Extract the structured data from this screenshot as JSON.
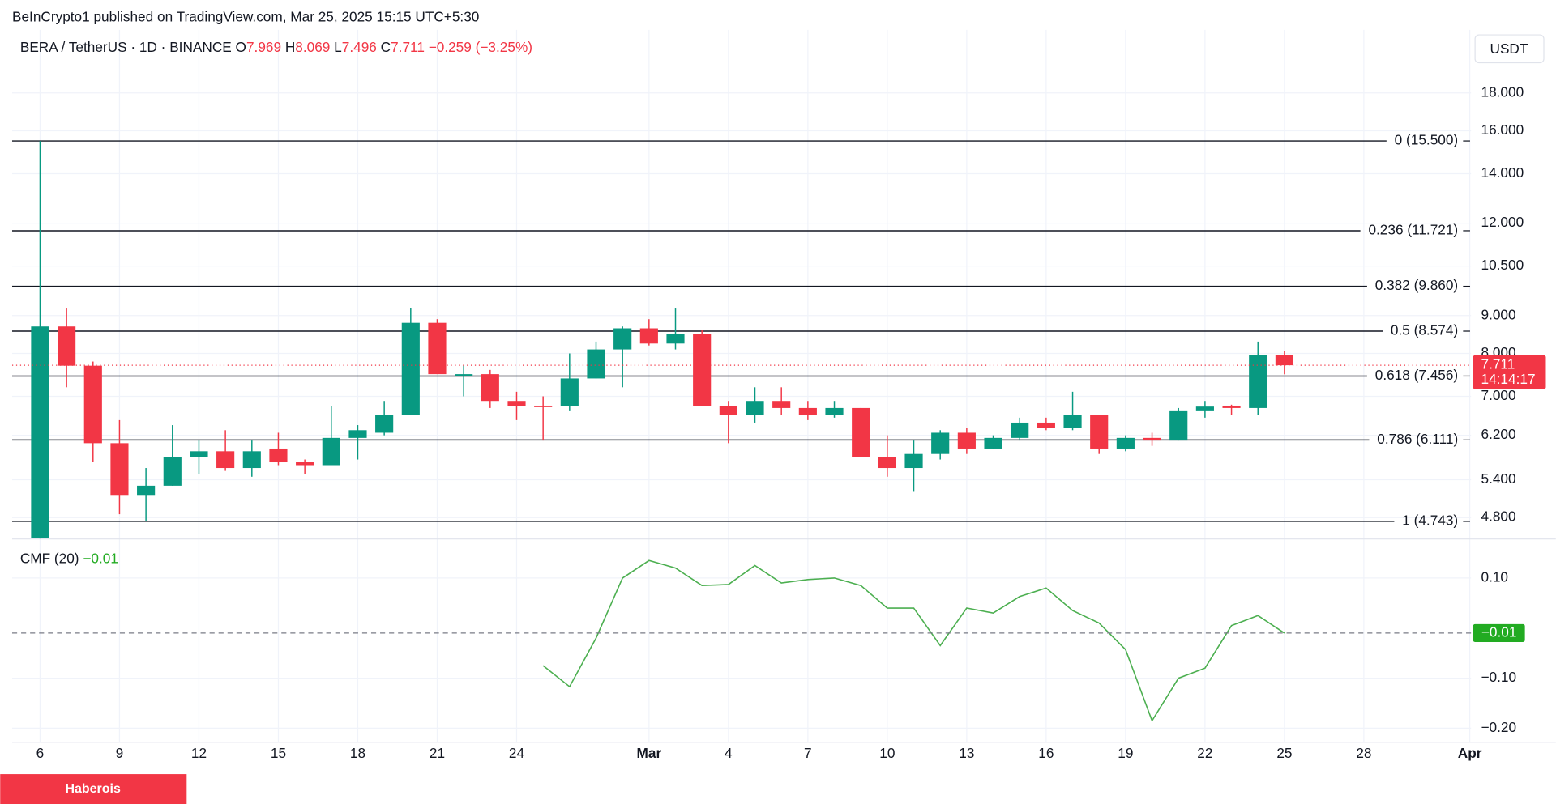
{
  "header": {
    "published": "BeInCrypto1 published on TradingView.com, Mar 25, 2025 15:15 UTC+5:30",
    "symbol": "BERA / TetherUS · 1D · BINANCE",
    "open_label": "O",
    "open": 7.969,
    "high_label": "H",
    "high": 8.069,
    "low_label": "L",
    "low": 7.496,
    "close_label": "C",
    "close": 7.711,
    "change": -0.259,
    "change_label": "−0.259",
    "change_pct": -3.25,
    "change_pct_label": "(−3.25%)",
    "currency": "USDT",
    "footer": "Haberois"
  },
  "chart_data": {
    "type": "candlestick",
    "log_scale": true,
    "grid": true,
    "up_color": "#089981",
    "down_color": "#f23645",
    "ylim": [
      4.49,
      21.9
    ],
    "yticks": [
      {
        "value": 18,
        "label": "18.000"
      },
      {
        "value": 16,
        "label": "16.000"
      },
      {
        "value": 14,
        "label": "14.000"
      },
      {
        "value": 12,
        "label": "12.000"
      },
      {
        "value": 10.5,
        "label": "10.500"
      },
      {
        "value": 9,
        "label": "9.000"
      },
      {
        "value": 8,
        "label": "8.000"
      },
      {
        "value": 7,
        "label": "7.000"
      },
      {
        "value": 6.2,
        "label": "6.200"
      },
      {
        "value": 5.4,
        "label": "5.400"
      },
      {
        "value": 4.8,
        "label": "4.800"
      }
    ],
    "xticks": [
      {
        "value": 0,
        "label": "6"
      },
      {
        "value": 3,
        "label": "9"
      },
      {
        "value": 6,
        "label": "12"
      },
      {
        "value": 9,
        "label": "15"
      },
      {
        "value": 12,
        "label": "18"
      },
      {
        "value": 15,
        "label": "21"
      },
      {
        "value": 18,
        "label": "24"
      },
      {
        "value": 23,
        "label": "Mar"
      },
      {
        "value": 26,
        "label": "4"
      },
      {
        "value": 29,
        "label": "7"
      },
      {
        "value": 32,
        "label": "10"
      },
      {
        "value": 35,
        "label": "13"
      },
      {
        "value": 38,
        "label": "16"
      },
      {
        "value": 41,
        "label": "19"
      },
      {
        "value": 44,
        "label": "22"
      },
      {
        "value": 47,
        "label": "25"
      },
      {
        "value": 50,
        "label": "28"
      },
      {
        "value": 54,
        "label": "Apr"
      }
    ],
    "candles": [
      {
        "o": 4.5,
        "h": 15.5,
        "l": 4.49,
        "c": 8.7
      },
      {
        "o": 8.7,
        "h": 9.2,
        "l": 7.2,
        "c": 7.7
      },
      {
        "o": 7.7,
        "h": 7.8,
        "l": 5.7,
        "c": 6.05
      },
      {
        "o": 6.05,
        "h": 6.5,
        "l": 4.85,
        "c": 5.15
      },
      {
        "o": 5.15,
        "h": 5.6,
        "l": 4.75,
        "c": 5.3
      },
      {
        "o": 5.3,
        "h": 6.4,
        "l": 5.3,
        "c": 5.8
      },
      {
        "o": 5.8,
        "h": 6.1,
        "l": 5.5,
        "c": 5.9
      },
      {
        "o": 5.9,
        "h": 6.3,
        "l": 5.55,
        "c": 5.6
      },
      {
        "o": 5.6,
        "h": 6.1,
        "l": 5.45,
        "c": 5.9
      },
      {
        "o": 5.95,
        "h": 6.25,
        "l": 5.65,
        "c": 5.7
      },
      {
        "o": 5.7,
        "h": 5.75,
        "l": 5.5,
        "c": 5.65
      },
      {
        "o": 5.65,
        "h": 6.8,
        "l": 5.65,
        "c": 6.15
      },
      {
        "o": 6.15,
        "h": 6.4,
        "l": 5.75,
        "c": 6.3
      },
      {
        "o": 6.25,
        "h": 6.9,
        "l": 6.2,
        "c": 6.6
      },
      {
        "o": 6.6,
        "h": 9.2,
        "l": 6.6,
        "c": 8.8
      },
      {
        "o": 8.8,
        "h": 8.9,
        "l": 7.5,
        "c": 7.5
      },
      {
        "o": 7.45,
        "h": 7.7,
        "l": 7.0,
        "c": 7.5
      },
      {
        "o": 7.5,
        "h": 7.6,
        "l": 6.75,
        "c": 6.9
      },
      {
        "o": 6.9,
        "h": 7.1,
        "l": 6.5,
        "c": 6.8
      },
      {
        "o": 6.8,
        "h": 7.0,
        "l": 6.1,
        "c": 6.78
      },
      {
        "o": 6.8,
        "h": 8.0,
        "l": 6.7,
        "c": 7.4
      },
      {
        "o": 7.4,
        "h": 8.3,
        "l": 7.4,
        "c": 8.1
      },
      {
        "o": 8.1,
        "h": 8.7,
        "l": 7.2,
        "c": 8.65
      },
      {
        "o": 8.65,
        "h": 8.9,
        "l": 8.2,
        "c": 8.25
      },
      {
        "o": 8.25,
        "h": 9.2,
        "l": 8.1,
        "c": 8.5
      },
      {
        "o": 8.5,
        "h": 8.6,
        "l": 6.8,
        "c": 6.8
      },
      {
        "o": 6.8,
        "h": 6.9,
        "l": 6.05,
        "c": 6.6
      },
      {
        "o": 6.6,
        "h": 7.2,
        "l": 6.45,
        "c": 6.9
      },
      {
        "o": 6.9,
        "h": 7.2,
        "l": 6.6,
        "c": 6.75
      },
      {
        "o": 6.75,
        "h": 6.9,
        "l": 6.5,
        "c": 6.6
      },
      {
        "o": 6.6,
        "h": 6.9,
        "l": 6.55,
        "c": 6.75
      },
      {
        "o": 6.75,
        "h": 6.75,
        "l": 5.8,
        "c": 5.8
      },
      {
        "o": 5.8,
        "h": 6.2,
        "l": 5.45,
        "c": 5.6
      },
      {
        "o": 5.6,
        "h": 6.1,
        "l": 5.2,
        "c": 5.85
      },
      {
        "o": 5.85,
        "h": 6.3,
        "l": 5.75,
        "c": 6.25
      },
      {
        "o": 6.25,
        "h": 6.35,
        "l": 5.85,
        "c": 5.95
      },
      {
        "o": 5.95,
        "h": 6.2,
        "l": 5.95,
        "c": 6.15
      },
      {
        "o": 6.15,
        "h": 6.55,
        "l": 6.1,
        "c": 6.45
      },
      {
        "o": 6.45,
        "h": 6.55,
        "l": 6.3,
        "c": 6.35
      },
      {
        "o": 6.35,
        "h": 7.1,
        "l": 6.3,
        "c": 6.6
      },
      {
        "o": 6.6,
        "h": 6.6,
        "l": 5.85,
        "c": 5.95
      },
      {
        "o": 5.95,
        "h": 6.2,
        "l": 5.9,
        "c": 6.15
      },
      {
        "o": 6.15,
        "h": 6.25,
        "l": 6.0,
        "c": 6.1
      },
      {
        "o": 6.1,
        "h": 6.75,
        "l": 6.1,
        "c": 6.7
      },
      {
        "o": 6.7,
        "h": 6.9,
        "l": 6.55,
        "c": 6.78
      },
      {
        "o": 6.8,
        "h": 6.82,
        "l": 6.6,
        "c": 6.75
      },
      {
        "o": 6.75,
        "h": 8.3,
        "l": 6.6,
        "c": 7.969
      },
      {
        "o": 7.969,
        "h": 8.069,
        "l": 7.496,
        "c": 7.711
      }
    ],
    "countdown": "14:14:17",
    "fib_levels": [
      {
        "value": 15.5,
        "label": "0 (15.500)"
      },
      {
        "value": 11.721,
        "label": "0.236 (11.721)"
      },
      {
        "value": 9.86,
        "label": "0.382 (9.860)"
      },
      {
        "value": 8.574,
        "label": "0.5 (8.574)"
      },
      {
        "value": 7.456,
        "label": "0.618 (7.456)"
      },
      {
        "value": 6.111,
        "label": "0.786 (6.111)"
      },
      {
        "value": 4.743,
        "label": "1 (4.743)"
      }
    ],
    "indicator": {
      "type": "line",
      "name": "CMF (20)",
      "color": "#4caf50",
      "last_label": "−0.01",
      "ylim": [
        -0.228,
        0.178
      ],
      "yticks": [
        {
          "value": 0.1,
          "label": "0.10"
        },
        {
          "value": -0.1,
          "label": "−0.10"
        },
        {
          "value": -0.2,
          "label": "−0.20"
        }
      ],
      "values": [
        null,
        null,
        null,
        null,
        null,
        null,
        null,
        null,
        null,
        null,
        null,
        null,
        null,
        null,
        null,
        null,
        null,
        null,
        null,
        -0.075,
        -0.117,
        -0.02,
        0.1,
        0.135,
        0.12,
        0.085,
        0.087,
        0.125,
        0.09,
        0.097,
        0.1,
        0.085,
        0.04,
        0.04,
        -0.035,
        0.04,
        0.03,
        0.063,
        0.08,
        0.035,
        0.01,
        -0.043,
        -0.185,
        -0.1,
        -0.08,
        0.005,
        0.025,
        -0.01
      ]
    }
  }
}
